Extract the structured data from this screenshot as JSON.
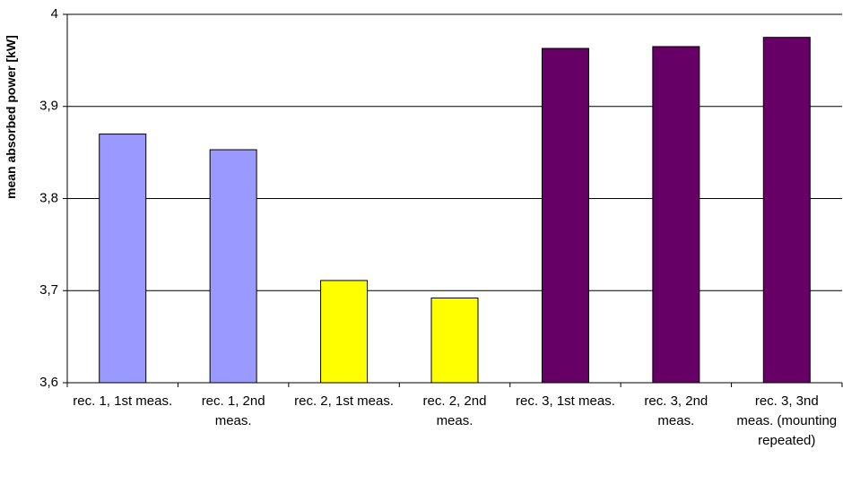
{
  "chart_data": {
    "type": "bar",
    "y_label": "mean absorbed power [kW]",
    "categories": [
      "rec. 1, 1st meas.",
      "rec. 1, 2nd meas.",
      "rec. 2, 1st meas.",
      "rec. 2, 2nd meas.",
      "rec. 3, 1st meas.",
      "rec. 3, 2nd meas.",
      "rec. 3, 3nd meas. (mounting repeated)"
    ],
    "values": [
      3.87,
      3.853,
      3.711,
      3.692,
      3.963,
      3.965,
      3.975
    ],
    "colors": [
      "#9999ff",
      "#9999ff",
      "#ffff00",
      "#ffff00",
      "#660066",
      "#660066",
      "#660066"
    ],
    "ylim": [
      3.6,
      4
    ],
    "yticks": [
      {
        "value": 3.6,
        "label": "3,6"
      },
      {
        "value": 3.7,
        "label": "3,7"
      },
      {
        "value": 3.8,
        "label": "3,8"
      },
      {
        "value": 3.9,
        "label": "3,9"
      },
      4
    ],
    "grid": true
  }
}
